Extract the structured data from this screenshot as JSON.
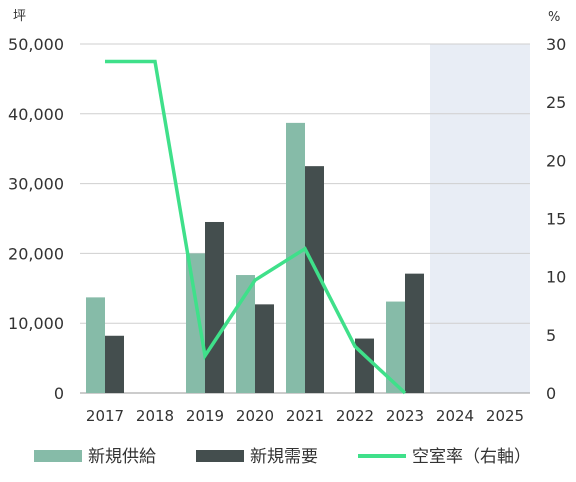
{
  "chart_data": {
    "type": "bar",
    "title": "",
    "xlabel": "",
    "y_left_unit": "坪",
    "y_right_unit": "%",
    "categories": [
      "2017",
      "2018",
      "2019",
      "2020",
      "2021",
      "2022",
      "2023",
      "2024",
      "2025"
    ],
    "ylim_left": [
      0,
      50000
    ],
    "ylim_right": [
      0,
      30
    ],
    "y_left_ticks": [
      "0",
      "10,000",
      "20,000",
      "30,000",
      "40,000",
      "50,000"
    ],
    "y_right_ticks": [
      "0",
      "5",
      "10",
      "15",
      "20",
      "25",
      "30"
    ],
    "grid": true,
    "forecast_shaded_categories": [
      "2024",
      "2025"
    ],
    "series": [
      {
        "name": "新規供給",
        "kind": "bar",
        "axis": "left",
        "color": "#86bba8",
        "values": [
          13700,
          0,
          20000,
          16900,
          38700,
          0,
          13100,
          null,
          null
        ]
      },
      {
        "name": "新規需要",
        "kind": "bar",
        "axis": "left",
        "color": "#444e4e",
        "values": [
          8200,
          0,
          24500,
          12700,
          32500,
          7800,
          17100,
          null,
          null
        ]
      },
      {
        "name": "空室率（右軸）",
        "kind": "line",
        "axis": "right",
        "color": "#3fe08a",
        "values": [
          28.5,
          28.5,
          3.2,
          9.7,
          12.4,
          4.0,
          0.0,
          null,
          null
        ]
      }
    ],
    "legend_position": "bottom"
  }
}
